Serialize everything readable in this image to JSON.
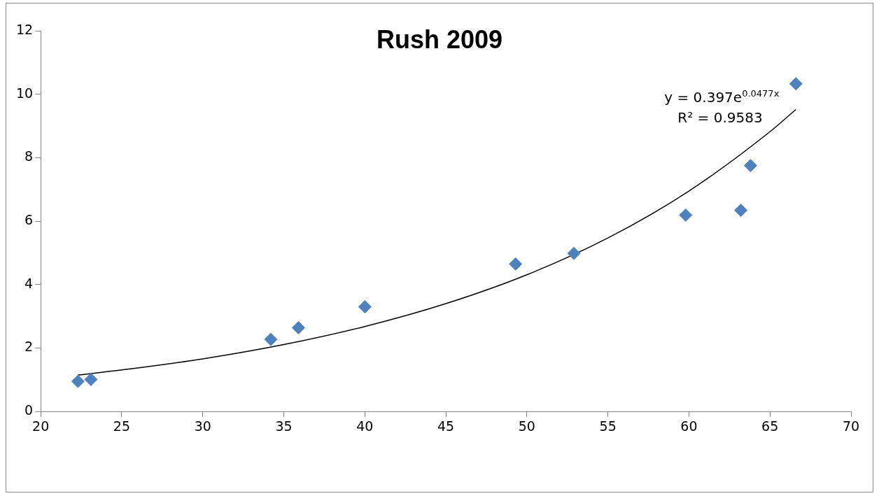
{
  "chart_data": {
    "type": "scatter",
    "title": "Rush 2009",
    "series": [
      {
        "color": "#4f81bd",
        "x": [
          22.3,
          23.1,
          34.2,
          35.9,
          40.0,
          49.3,
          52.9,
          59.8,
          63.2,
          63.8,
          66.6
        ],
        "values": [
          0.95,
          1.01,
          2.27,
          2.64,
          3.3,
          4.65,
          4.98,
          6.19,
          6.34,
          7.75,
          10.33
        ]
      },
      {
        "type": "line",
        "color": "#000000",
        "marker": "none",
        "x": [
          22.3,
          25,
          30,
          35,
          40,
          45,
          50,
          55,
          60,
          65,
          66.6
        ],
        "values": [
          1.15,
          1.31,
          1.66,
          2.11,
          2.68,
          3.4,
          4.31,
          5.47,
          6.95,
          8.82,
          9.52
        ]
      }
    ],
    "marker": "diamond",
    "xlim": [
      20,
      70
    ],
    "xticks": [
      20,
      25,
      30,
      35,
      40,
      45,
      50,
      55,
      60,
      65,
      70
    ],
    "ylim": [
      0,
      12
    ],
    "yticks": [
      0,
      2,
      4,
      6,
      8,
      10,
      12
    ],
    "grid": false,
    "legend": false,
    "annotations": [
      {
        "text": "y = 0.397e$^{0.0477x}$",
        "x": 66.6,
        "y": 9.52
      },
      {
        "text": "R² = 0.9583",
        "x": 66.6,
        "y": 9.52
      }
    ]
  }
}
